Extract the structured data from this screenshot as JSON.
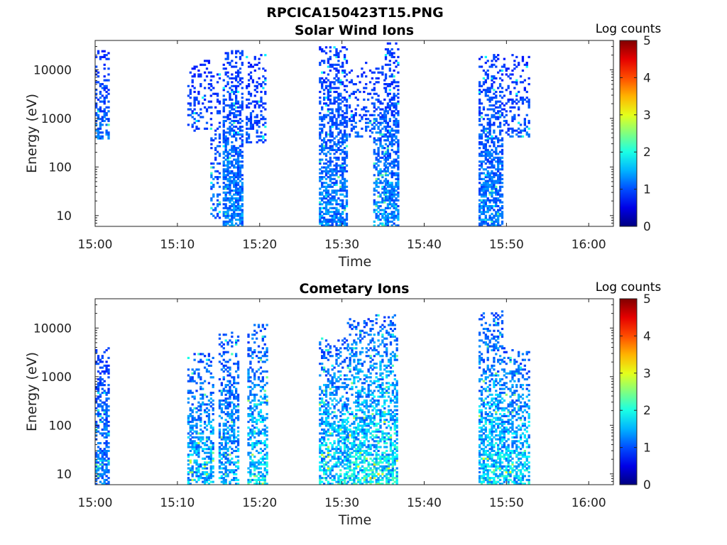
{
  "figure": {
    "title": "RPCICA150423T15.PNG"
  },
  "chart_data": [
    {
      "type": "heatmap",
      "title": "Solar Wind Ions",
      "xlabel": "Time",
      "ylabel": "Energy (eV)",
      "x_ticks": [
        "15:00",
        "15:10",
        "15:20",
        "15:30",
        "15:40",
        "15:50",
        "16:00"
      ],
      "x_range_minutes": [
        0,
        63
      ],
      "y_scale": "log",
      "y_ticks": [
        10,
        100,
        1000,
        10000
      ],
      "y_tick_labels": [
        "10",
        "100",
        "1000",
        "10000"
      ],
      "y_range": [
        6,
        40000
      ],
      "colorbar": {
        "label": "Log counts",
        "ticks": [
          "0",
          "1",
          "2",
          "3",
          "4",
          "5"
        ],
        "range": [
          0,
          5
        ],
        "colormap": "jet"
      },
      "bursts": [
        {
          "t_start": 0.0,
          "t_end": 1.6,
          "e_min": 350,
          "e_max": 25000,
          "density": 0.55,
          "mean_log": 0.5
        },
        {
          "t_start": 11.2,
          "t_end": 14.2,
          "e_min": 500,
          "e_max": 15000,
          "density": 0.3,
          "mean_log": 0.4
        },
        {
          "t_start": 14.0,
          "t_end": 15.2,
          "e_min": 8,
          "e_max": 8000,
          "density": 0.35,
          "mean_log": 0.5
        },
        {
          "t_start": 15.5,
          "t_end": 17.8,
          "e_min": 6,
          "e_max": 25000,
          "density": 0.75,
          "mean_log": 0.6
        },
        {
          "t_start": 18.3,
          "t_end": 20.8,
          "e_min": 300,
          "e_max": 22000,
          "density": 0.4,
          "mean_log": 0.4
        },
        {
          "t_start": 27.2,
          "t_end": 30.6,
          "e_min": 6,
          "e_max": 30000,
          "density": 0.65,
          "mean_log": 0.6
        },
        {
          "t_start": 30.8,
          "t_end": 33.8,
          "e_min": 400,
          "e_max": 15000,
          "density": 0.35,
          "mean_log": 0.4
        },
        {
          "t_start": 33.8,
          "t_end": 35.2,
          "e_min": 6,
          "e_max": 12000,
          "density": 0.55,
          "mean_log": 0.7
        },
        {
          "t_start": 35.2,
          "t_end": 36.8,
          "e_min": 6,
          "e_max": 35000,
          "density": 0.7,
          "mean_log": 0.6
        },
        {
          "t_start": 46.6,
          "t_end": 49.6,
          "e_min": 6,
          "e_max": 20000,
          "density": 0.65,
          "mean_log": 0.6
        },
        {
          "t_start": 49.6,
          "t_end": 52.8,
          "e_min": 400,
          "e_max": 20000,
          "density": 0.35,
          "mean_log": 0.4
        }
      ]
    },
    {
      "type": "heatmap",
      "title": "Cometary Ions",
      "xlabel": "Time",
      "ylabel": "Energy (eV)",
      "x_ticks": [
        "15:00",
        "15:10",
        "15:20",
        "15:30",
        "15:40",
        "15:50",
        "16:00"
      ],
      "x_range_minutes": [
        0,
        63
      ],
      "y_scale": "log",
      "y_ticks": [
        10,
        100,
        1000,
        10000
      ],
      "y_tick_labels": [
        "10",
        "100",
        "1000",
        "10000"
      ],
      "y_range": [
        6,
        40000
      ],
      "colorbar": {
        "label": "Log counts",
        "ticks": [
          "0",
          "1",
          "2",
          "3",
          "4",
          "5"
        ],
        "range": [
          0,
          5
        ],
        "colormap": "jet"
      },
      "bursts": [
        {
          "t_start": 0.0,
          "t_end": 1.6,
          "e_min": 6,
          "e_max": 4000,
          "density": 0.65,
          "mean_log": 0.6
        },
        {
          "t_start": 11.2,
          "t_end": 14.4,
          "e_min": 6,
          "e_max": 3000,
          "density": 0.55,
          "mean_log": 0.9
        },
        {
          "t_start": 15.0,
          "t_end": 17.4,
          "e_min": 6,
          "e_max": 8000,
          "density": 0.5,
          "mean_log": 0.8
        },
        {
          "t_start": 18.5,
          "t_end": 20.8,
          "e_min": 6,
          "e_max": 12000,
          "density": 0.55,
          "mean_log": 1.0
        },
        {
          "t_start": 27.2,
          "t_end": 30.6,
          "e_min": 6,
          "e_max": 6000,
          "density": 0.6,
          "mean_log": 1.0
        },
        {
          "t_start": 30.6,
          "t_end": 33.8,
          "e_min": 6,
          "e_max": 15000,
          "density": 0.6,
          "mean_log": 1.1
        },
        {
          "t_start": 33.8,
          "t_end": 36.8,
          "e_min": 6,
          "e_max": 18000,
          "density": 0.6,
          "mean_log": 1.1
        },
        {
          "t_start": 46.6,
          "t_end": 49.6,
          "e_min": 6,
          "e_max": 25000,
          "density": 0.6,
          "mean_log": 1.0
        },
        {
          "t_start": 49.6,
          "t_end": 52.8,
          "e_min": 6,
          "e_max": 4000,
          "density": 0.55,
          "mean_log": 1.0
        }
      ]
    }
  ]
}
